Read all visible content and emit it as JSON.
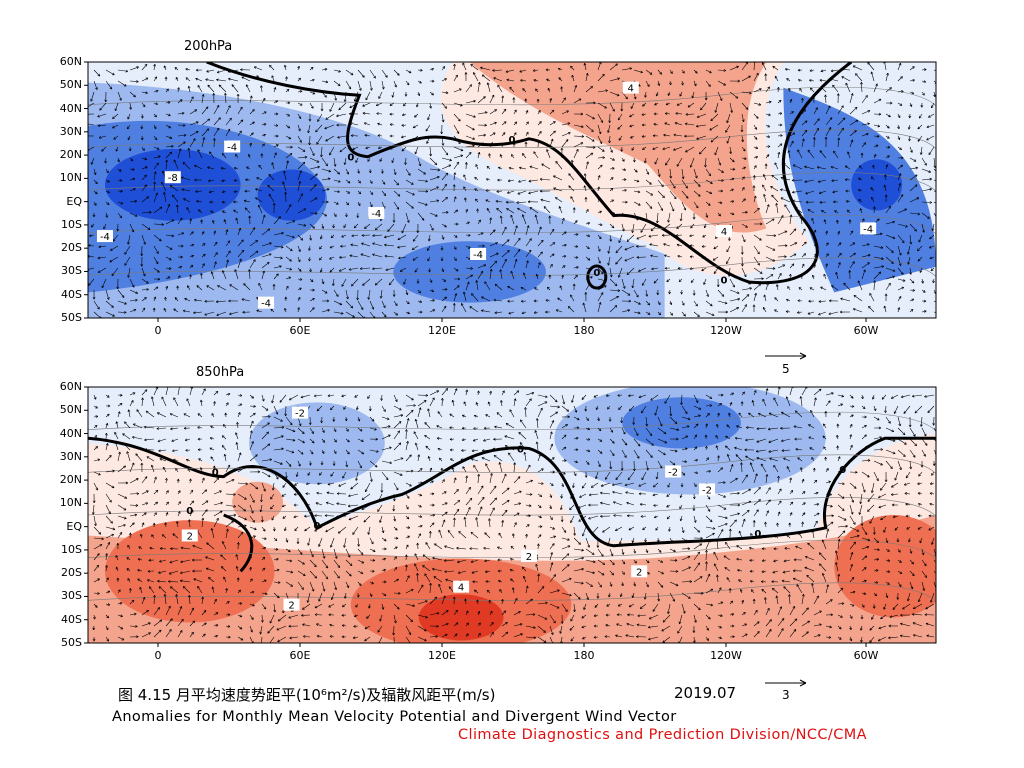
{
  "panels": [
    {
      "title": "200hPa",
      "lat_labels": [
        "60N",
        "50N",
        "40N",
        "30N",
        "20N",
        "10N",
        "EQ",
        "10S",
        "20S",
        "30S",
        "40S",
        "50S"
      ],
      "lon_labels": [
        "0",
        "60E",
        "120E",
        "180",
        "120W",
        "60W"
      ],
      "contour_labels": [
        "-4",
        "-8",
        "-4",
        "-4",
        "-4",
        "-4",
        "-4",
        "4",
        "4",
        "0",
        "0",
        "0",
        "0"
      ],
      "ref_vector_label": "5"
    },
    {
      "title": "850hPa",
      "lat_labels": [
        "60N",
        "50N",
        "40N",
        "30N",
        "20N",
        "10N",
        "EQ",
        "10S",
        "20S",
        "30S",
        "40S",
        "50S"
      ],
      "lon_labels": [
        "0",
        "60E",
        "120E",
        "180",
        "120W",
        "60W"
      ],
      "contour_labels": [
        "-2",
        "-2",
        "-2",
        "2",
        "2",
        "2",
        "2",
        "4",
        "0",
        "0",
        "0",
        "0",
        "0",
        "0"
      ],
      "ref_vector_label": "3"
    }
  ],
  "caption": {
    "cn_title": "图 4.15  月平均速度势距平(10⁶m²/s)及辐散风距平(m/s)",
    "date": "2019.07",
    "en_title": "Anomalies for Monthly Mean Velocity Potential and Divergent Wind Vector",
    "credit": "Climate Diagnostics and Prediction Division/NCC/CMA"
  },
  "colors": {
    "neg_strong": "#1f4fd6",
    "neg_mid": "#4f7fe0",
    "neg_light": "#9db9ef",
    "neg_pale": "#e6eefc",
    "pos_pale": "#fde8e2",
    "pos_light": "#f4a38c",
    "pos_mid": "#ee6f52",
    "pos_strong": "#e03a24",
    "credit": "#e01010"
  }
}
